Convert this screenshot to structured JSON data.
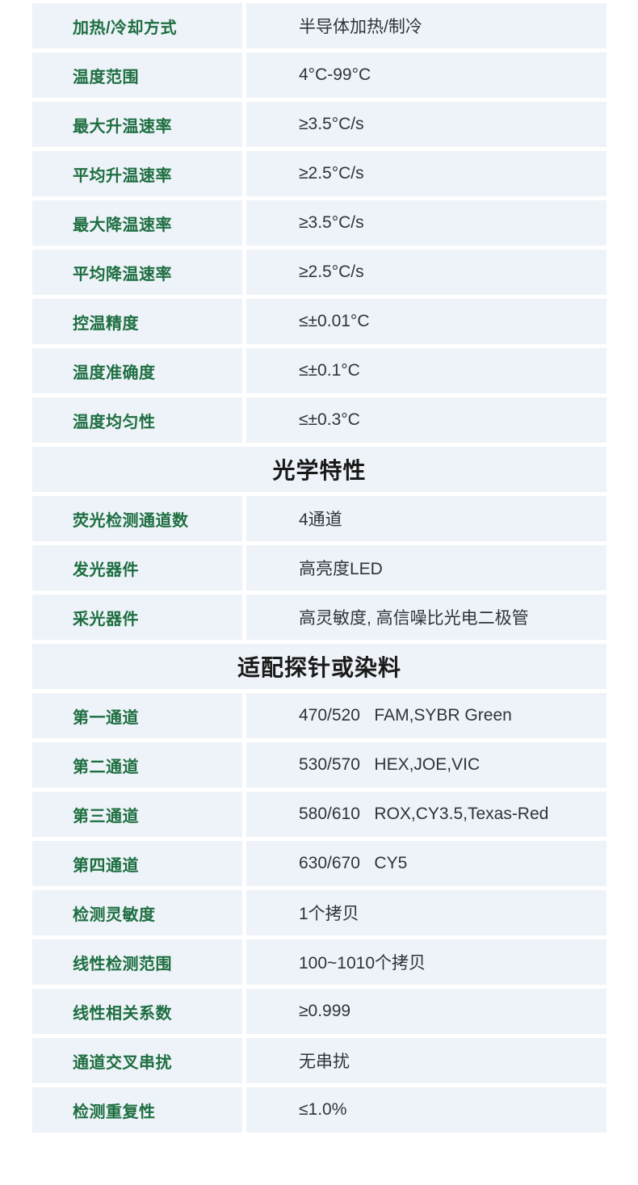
{
  "theme": {
    "row_bg": "#edf3f8",
    "label_color": "#1e6e41",
    "value_color": "#2f343a",
    "header_color": "#1a1a1a",
    "page_bg": "#ffffff"
  },
  "table": {
    "sections": [
      {
        "header": null,
        "rows": [
          {
            "label": "加热/冷却方式",
            "value": "半导体加热/制冷"
          },
          {
            "label": "温度范围",
            "value": "4°C-99°C"
          },
          {
            "label": "最大升温速率",
            "value": "≥3.5°C/s"
          },
          {
            "label": "平均升温速率",
            "value": "≥2.5°C/s"
          },
          {
            "label": "最大降温速率",
            "value": "≥3.5°C/s"
          },
          {
            "label": "平均降温速率",
            "value": "≥2.5°C/s"
          },
          {
            "label": "控温精度",
            "value": "≤±0.01°C"
          },
          {
            "label": "温度准确度",
            "value": "≤±0.1°C"
          },
          {
            "label": "温度均匀性",
            "value": "≤±0.3°C"
          }
        ]
      },
      {
        "header": "光学特性",
        "rows": [
          {
            "label": "荧光检测通道数",
            "value": "4通道"
          },
          {
            "label": "发光器件",
            "value": "高亮度LED"
          },
          {
            "label": "采光器件",
            "value": "高灵敏度, 高信噪比光电二极管"
          }
        ]
      },
      {
        "header": "适配探针或染料",
        "rows": [
          {
            "label": "第一通道",
            "value": "470/520   FAM,SYBR Green"
          },
          {
            "label": "第二通道",
            "value": "530/570   HEX,JOE,VIC"
          },
          {
            "label": "第三通道",
            "value": "580/610   ROX,CY3.5,Texas-Red"
          },
          {
            "label": "第四通道",
            "value": "630/670   CY5"
          },
          {
            "label": "检测灵敏度",
            "value": "1个拷贝"
          },
          {
            "label": "线性检测范围",
            "value": "100~1010个拷贝"
          },
          {
            "label": "线性相关系数",
            "value": "≥0.999"
          },
          {
            "label": "通道交叉串扰",
            "value": "无串扰"
          },
          {
            "label": "检测重复性",
            "value": "≤1.0%"
          }
        ]
      }
    ]
  }
}
